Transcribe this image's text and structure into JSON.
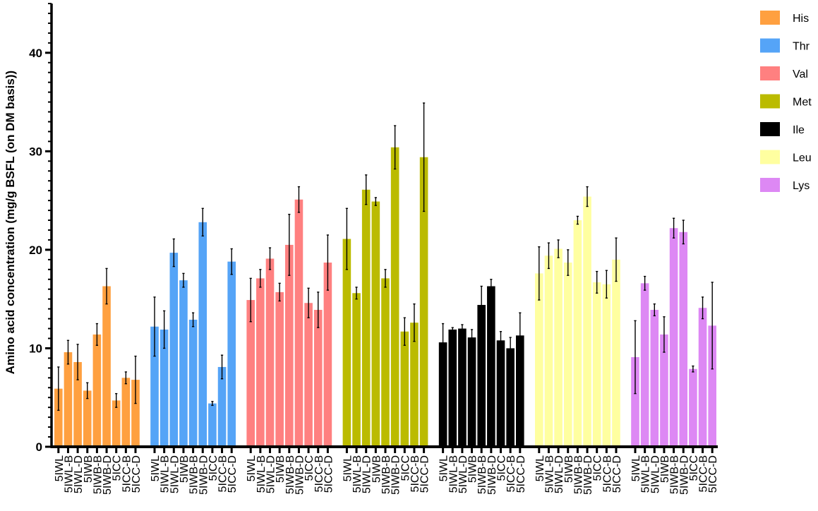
{
  "chart_data": {
    "type": "bar",
    "ylabel": "Amino acid concentration (mg/g BSFL (on DM basis))",
    "xlabel": "",
    "ylim": [
      0,
      45
    ],
    "yticks": [
      0,
      10,
      20,
      30,
      40
    ],
    "grid": false,
    "legend_position": "right",
    "categories": [
      "5IWL",
      "5IWL-B",
      "5IWL-D",
      "5IWB",
      "5IWB-B",
      "5IWB-D",
      "5ICC",
      "5ICC-B",
      "5ICC-D"
    ],
    "series": [
      {
        "name": "His",
        "color": "#FFA040",
        "values": [
          5.9,
          9.6,
          8.6,
          5.7,
          11.4,
          16.3,
          4.7,
          7.0,
          6.8
        ],
        "errors": [
          2.2,
          1.2,
          1.8,
          0.8,
          1.1,
          1.8,
          0.7,
          0.6,
          2.4
        ]
      },
      {
        "name": "Thr",
        "color": "#55A4F7",
        "values": [
          12.2,
          11.9,
          19.7,
          16.9,
          12.9,
          22.8,
          4.4,
          8.1,
          18.8
        ],
        "errors": [
          3.0,
          1.9,
          1.4,
          0.7,
          0.7,
          1.4,
          0.2,
          1.2,
          1.3
        ]
      },
      {
        "name": "Val",
        "color": "#FF8080",
        "values": [
          14.9,
          17.1,
          19.1,
          15.7,
          20.5,
          25.1,
          14.6,
          13.9,
          18.7
        ],
        "errors": [
          2.2,
          0.9,
          1.1,
          0.9,
          3.1,
          1.3,
          1.5,
          1.8,
          2.8
        ]
      },
      {
        "name": "Met",
        "color": "#BBBB00",
        "values": [
          21.1,
          15.6,
          26.1,
          24.9,
          17.1,
          30.4,
          11.7,
          12.6,
          29.4
        ],
        "errors": [
          3.1,
          0.6,
          1.5,
          0.4,
          0.9,
          2.2,
          1.4,
          1.9,
          5.5
        ]
      },
      {
        "name": "Ile",
        "color": "#000000",
        "values": [
          10.6,
          11.9,
          12.0,
          11.1,
          14.4,
          16.3,
          10.8,
          10.0,
          11.3
        ],
        "errors": [
          1.9,
          0.2,
          0.4,
          0.8,
          1.9,
          0.7,
          0.9,
          1.1,
          2.3
        ]
      },
      {
        "name": "Leu",
        "color": "#FFFFA0",
        "values": [
          17.6,
          19.4,
          20.1,
          18.7,
          23.0,
          25.4,
          16.7,
          16.5,
          19.0
        ],
        "errors": [
          2.7,
          1.3,
          0.9,
          1.3,
          0.4,
          1.0,
          1.1,
          1.4,
          2.2
        ]
      },
      {
        "name": "Lys",
        "color": "#DD88F4",
        "values": [
          9.1,
          16.6,
          13.9,
          11.4,
          22.2,
          21.8,
          7.9,
          14.1,
          12.3
        ],
        "errors": [
          3.7,
          0.7,
          0.6,
          1.8,
          1.0,
          1.2,
          0.3,
          1.1,
          4.4
        ]
      }
    ]
  }
}
